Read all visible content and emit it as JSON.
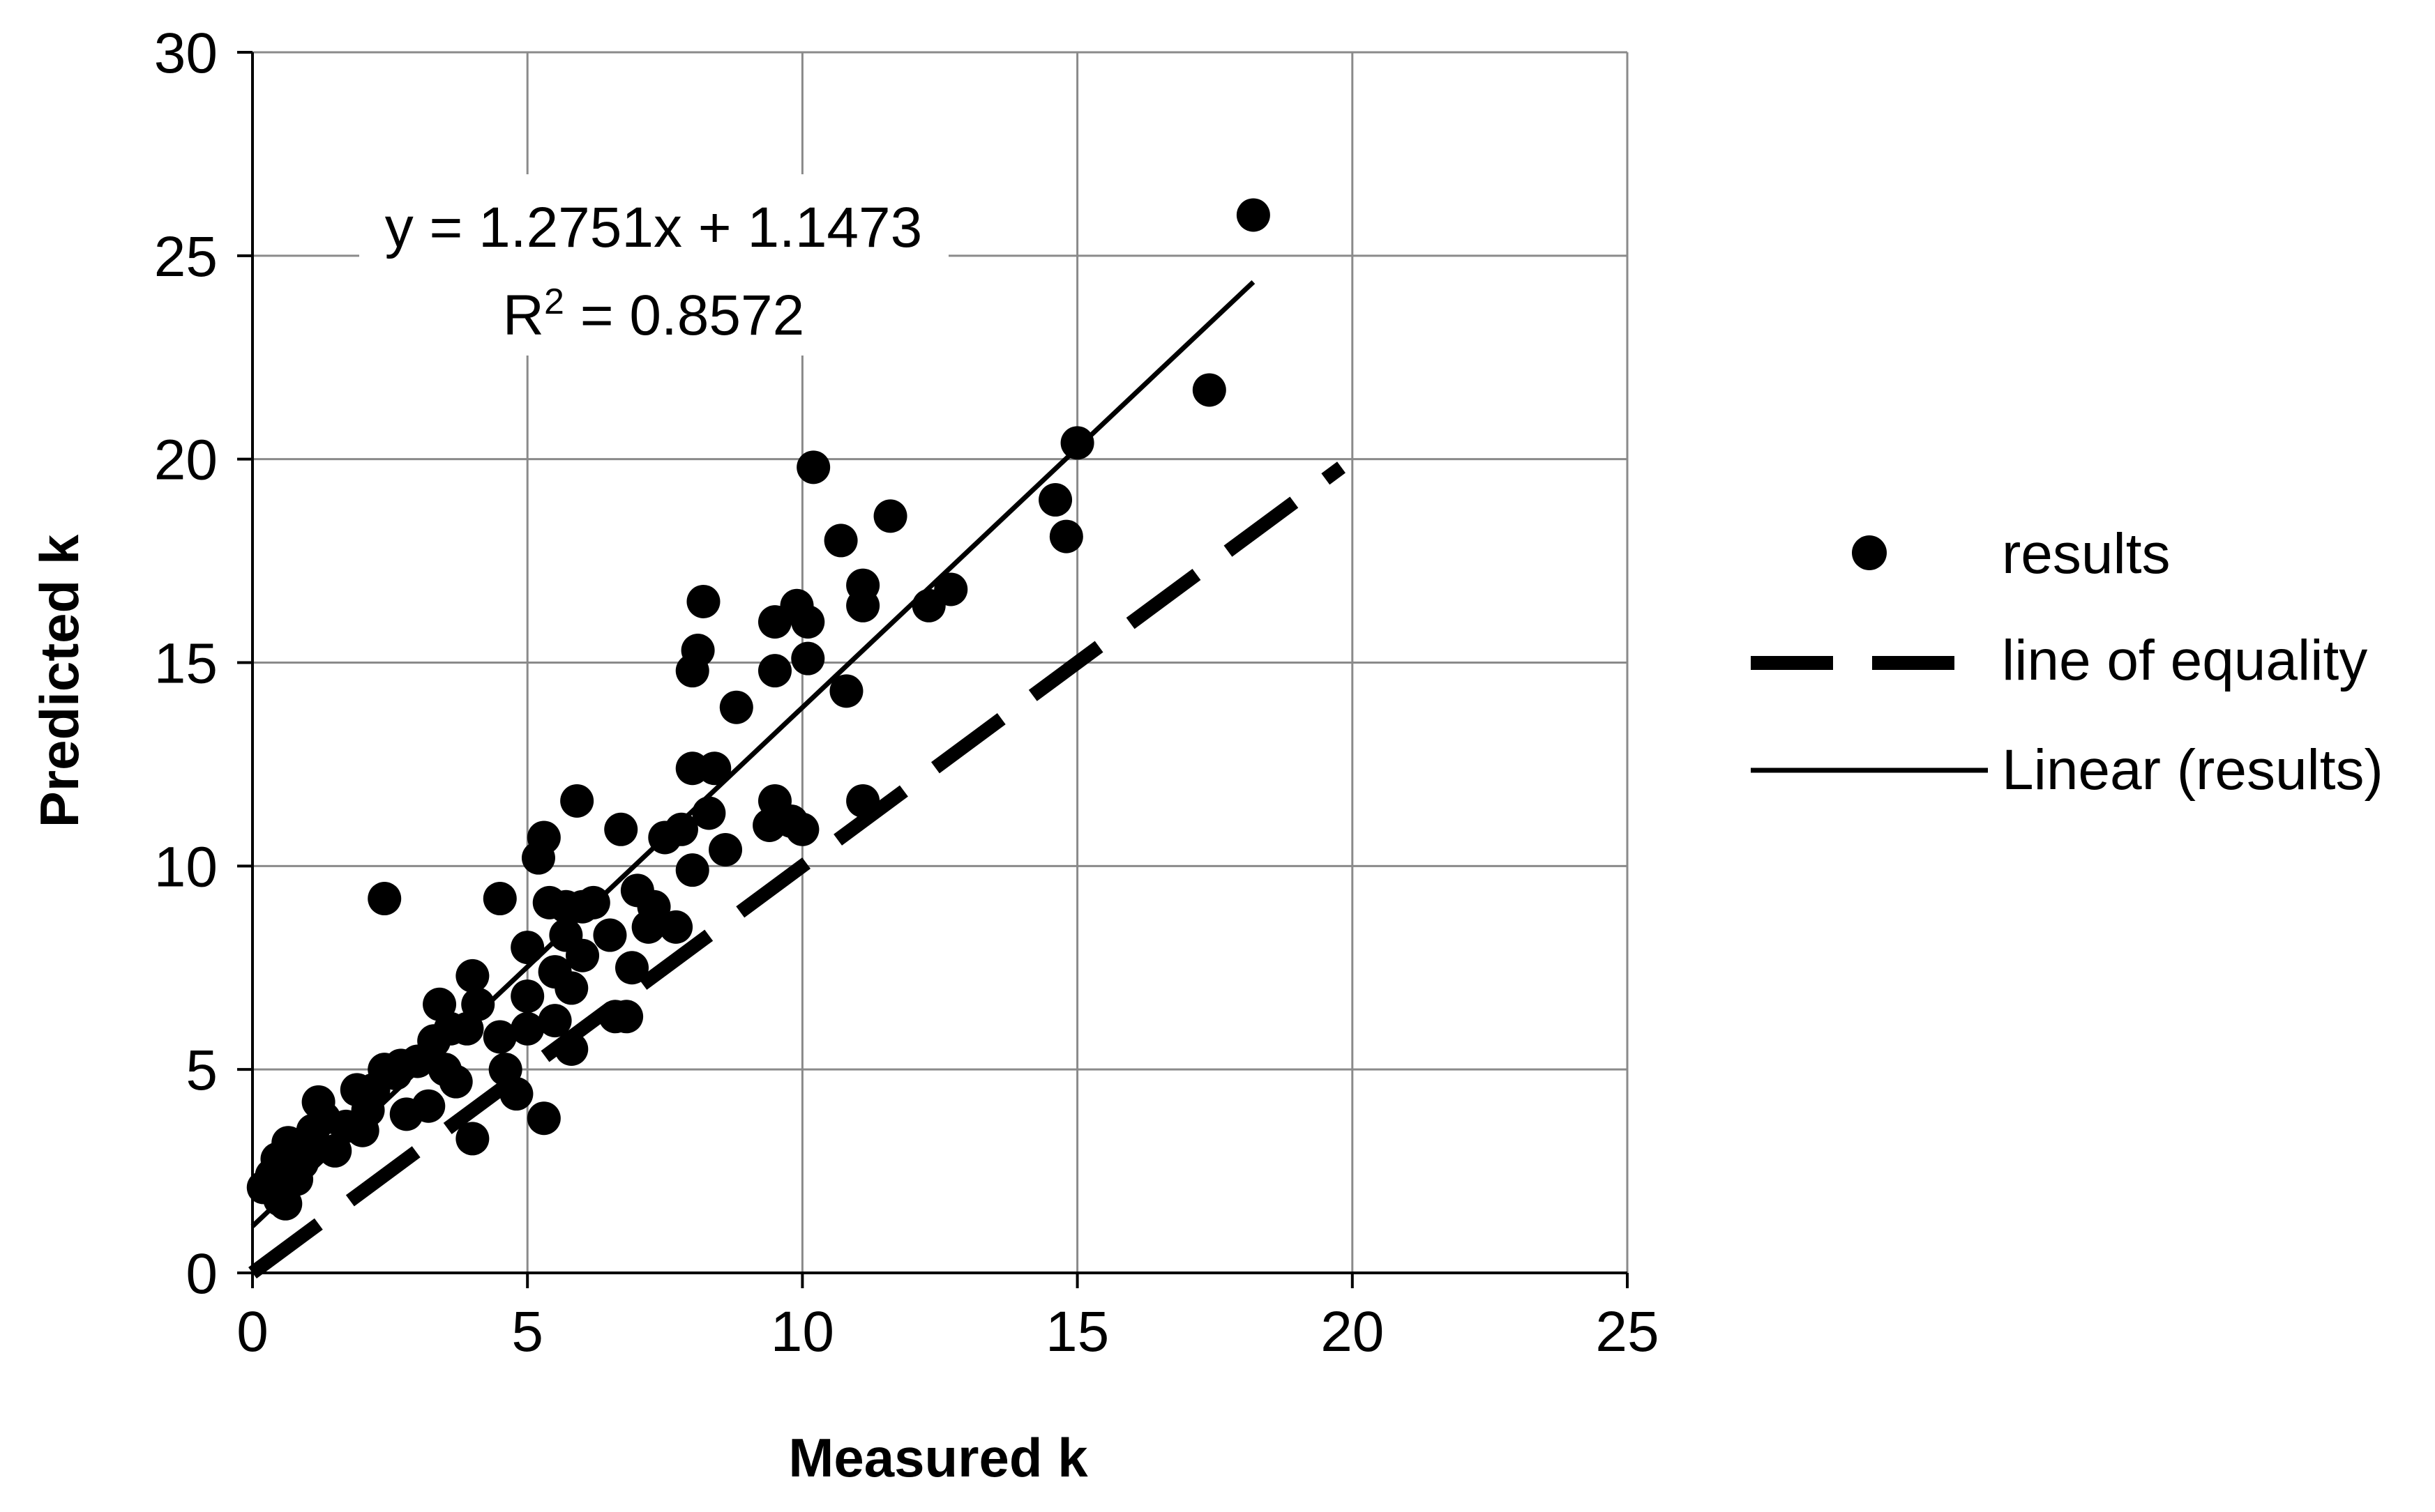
{
  "chart_data": {
    "type": "scatter",
    "title": "",
    "xlabel": "Measured k",
    "ylabel": "Predicted k",
    "xlim": [
      0,
      25
    ],
    "ylim": [
      0,
      30
    ],
    "x_ticks": [
      "0",
      "5",
      "10",
      "15",
      "20",
      "25"
    ],
    "y_ticks": [
      "0",
      "5",
      "10",
      "15",
      "20",
      "25",
      "30"
    ],
    "grid": true,
    "legend_position": "right",
    "trendline": {
      "equation": "y = 1.2751x + 1.1473",
      "r2_prefix": "R",
      "r2_sup": "2",
      "r2_suffix": " = 0.8572",
      "slope": 1.2751,
      "intercept": 1.1473,
      "x_range": [
        0,
        18.2
      ]
    },
    "equality_line": {
      "x_range": [
        0,
        19.8
      ]
    },
    "series": [
      {
        "name": "results",
        "points": [
          [
            0.2,
            2.1
          ],
          [
            0.35,
            2.4
          ],
          [
            0.45,
            2.8
          ],
          [
            0.5,
            1.8
          ],
          [
            0.6,
            1.7
          ],
          [
            0.65,
            3.2
          ],
          [
            0.8,
            2.3
          ],
          [
            0.9,
            2.7
          ],
          [
            1.0,
            3.0
          ],
          [
            1.1,
            3.5
          ],
          [
            1.2,
            4.2
          ],
          [
            1.3,
            3.8
          ],
          [
            1.5,
            3.0
          ],
          [
            1.7,
            3.6
          ],
          [
            1.9,
            4.5
          ],
          [
            2.0,
            3.5
          ],
          [
            2.1,
            4.0
          ],
          [
            2.2,
            4.5
          ],
          [
            2.4,
            5.0
          ],
          [
            2.4,
            9.2
          ],
          [
            2.6,
            4.9
          ],
          [
            2.7,
            5.1
          ],
          [
            2.8,
            3.9
          ],
          [
            3.0,
            5.2
          ],
          [
            3.2,
            4.1
          ],
          [
            3.3,
            5.7
          ],
          [
            3.4,
            6.6
          ],
          [
            3.5,
            5.0
          ],
          [
            3.6,
            6.0
          ],
          [
            3.7,
            4.7
          ],
          [
            3.9,
            6.0
          ],
          [
            4.0,
            7.3
          ],
          [
            4.1,
            6.6
          ],
          [
            4.0,
            3.3
          ],
          [
            4.5,
            5.8
          ],
          [
            4.5,
            9.2
          ],
          [
            4.6,
            5.0
          ],
          [
            4.8,
            4.4
          ],
          [
            5.0,
            6.0
          ],
          [
            5.0,
            6.8
          ],
          [
            5.0,
            8.0
          ],
          [
            5.2,
            10.2
          ],
          [
            5.3,
            10.7
          ],
          [
            5.3,
            3.8
          ],
          [
            5.4,
            9.1
          ],
          [
            5.5,
            7.4
          ],
          [
            5.5,
            6.2
          ],
          [
            5.7,
            8.3
          ],
          [
            5.7,
            9.0
          ],
          [
            5.8,
            7.0
          ],
          [
            5.8,
            5.5
          ],
          [
            5.9,
            11.6
          ],
          [
            6.0,
            9.0
          ],
          [
            6.0,
            7.8
          ],
          [
            6.2,
            9.1
          ],
          [
            6.5,
            8.3
          ],
          [
            6.6,
            6.3
          ],
          [
            6.7,
            10.9
          ],
          [
            6.8,
            6.3
          ],
          [
            6.9,
            7.5
          ],
          [
            7.0,
            9.4
          ],
          [
            7.2,
            8.5
          ],
          [
            7.3,
            9.0
          ],
          [
            7.5,
            10.7
          ],
          [
            7.7,
            8.5
          ],
          [
            7.8,
            10.9
          ],
          [
            8.0,
            9.9
          ],
          [
            8.0,
            12.4
          ],
          [
            8.0,
            14.8
          ],
          [
            8.1,
            15.3
          ],
          [
            8.2,
            16.5
          ],
          [
            8.3,
            11.3
          ],
          [
            8.4,
            12.4
          ],
          [
            8.6,
            10.4
          ],
          [
            8.8,
            13.9
          ],
          [
            9.4,
            11.0
          ],
          [
            9.5,
            11.6
          ],
          [
            9.5,
            14.8
          ],
          [
            9.5,
            16.0
          ],
          [
            9.8,
            11.1
          ],
          [
            9.9,
            16.4
          ],
          [
            10.0,
            10.9
          ],
          [
            10.1,
            15.1
          ],
          [
            10.1,
            16.0
          ],
          [
            10.2,
            19.8
          ],
          [
            10.7,
            18.0
          ],
          [
            10.8,
            14.3
          ],
          [
            11.1,
            16.9
          ],
          [
            11.1,
            16.4
          ],
          [
            11.1,
            11.6
          ],
          [
            11.6,
            18.6
          ],
          [
            12.3,
            16.4
          ],
          [
            12.7,
            16.8
          ],
          [
            14.6,
            19.0
          ],
          [
            14.8,
            18.1
          ],
          [
            15.0,
            20.4
          ],
          [
            17.4,
            21.7
          ],
          [
            18.2,
            26.0
          ]
        ]
      }
    ],
    "legend": [
      {
        "label": "results",
        "kind": "marker"
      },
      {
        "label": "line of equality",
        "kind": "dashed"
      },
      {
        "label": "Linear (results)",
        "kind": "solid"
      }
    ]
  }
}
